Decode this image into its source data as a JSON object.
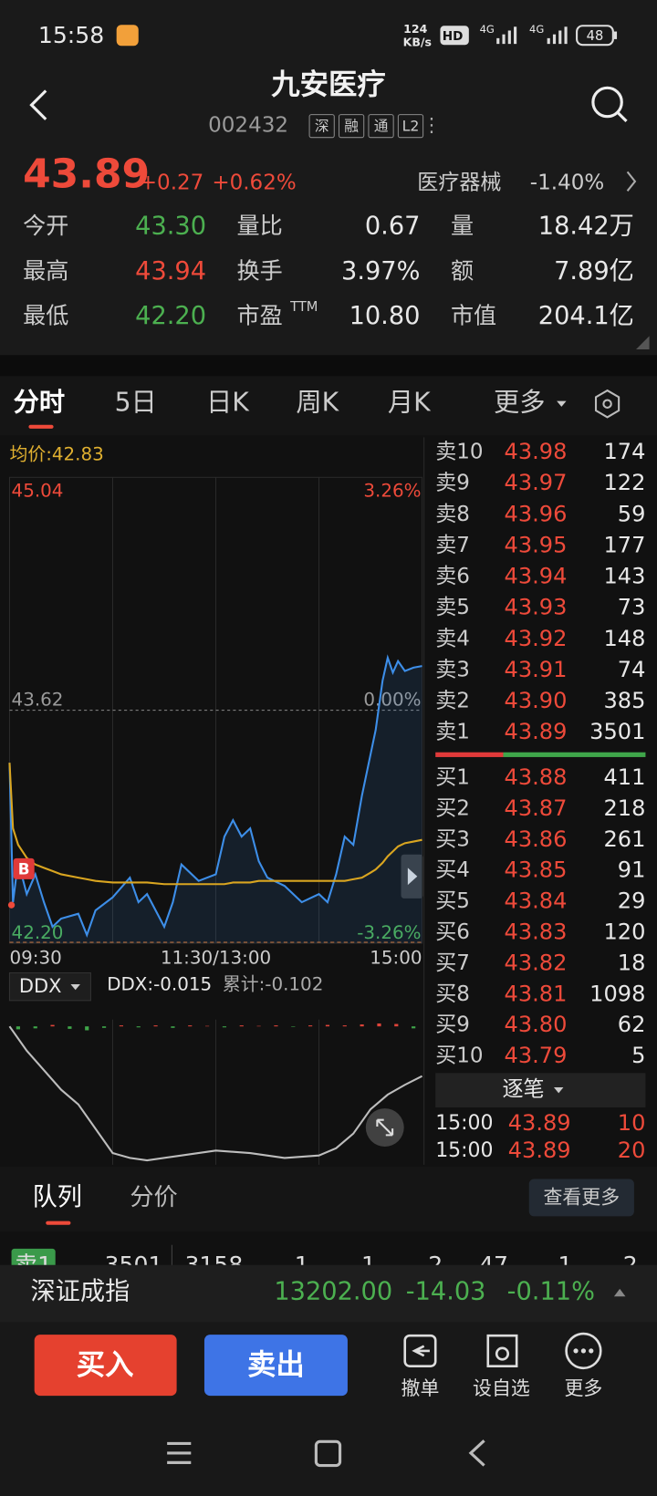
{
  "status_bar": {
    "time": "15:58",
    "net_speed": "124",
    "net_unit": "KB/s",
    "hd": "HD",
    "signal_labels": [
      "4G",
      "4G"
    ],
    "battery": "48"
  },
  "header": {
    "title": "九安医疗",
    "code": "002432",
    "tags": [
      "深",
      "融",
      "通",
      "L2"
    ]
  },
  "quote": {
    "price": "43.89",
    "change": "+0.27",
    "change_pct": "+0.62%",
    "sector": "医疗器械",
    "sector_change": "-1.40%"
  },
  "stats": [
    [
      {
        "label": "今开",
        "value": "43.30",
        "color": "#4cb050"
      },
      {
        "label": "量比",
        "value": "0.67"
      },
      {
        "label": "量",
        "value": "18.42万"
      }
    ],
    [
      {
        "label": "最高",
        "value": "43.94",
        "color": "#ee4a3a"
      },
      {
        "label": "换手",
        "value": "3.97%"
      },
      {
        "label": "额",
        "value": "7.89亿"
      }
    ],
    [
      {
        "label": "最低",
        "value": "42.20",
        "color": "#4cb050"
      },
      {
        "label": "市盈",
        "label_sup": "TTM",
        "value": "10.80"
      },
      {
        "label": "市值",
        "value": "204.1亿"
      }
    ]
  ],
  "period_tabs": [
    "分时",
    "5日",
    "日K",
    "周K",
    "月K",
    "更多"
  ],
  "chart_data": [
    {
      "type": "line",
      "avg_label": "均价:42.83",
      "marker_label": "B",
      "x": [
        0,
        2,
        5,
        10,
        15,
        20,
        25,
        30,
        40,
        45,
        50,
        60,
        70,
        75,
        80,
        90,
        95,
        100,
        110,
        120,
        125,
        130,
        135,
        140,
        145,
        150,
        160,
        170,
        180,
        185,
        190,
        195,
        200,
        205,
        210,
        213,
        217,
        220,
        223,
        226,
        230,
        235,
        240
      ],
      "series": [
        {
          "color": "#3d8ee8",
          "values": [
            43.3,
            42.45,
            42.7,
            42.5,
            42.62,
            42.45,
            42.3,
            42.35,
            42.38,
            42.25,
            42.4,
            42.48,
            42.6,
            42.45,
            42.5,
            42.3,
            42.45,
            42.68,
            42.58,
            42.62,
            42.85,
            42.95,
            42.85,
            42.9,
            42.7,
            42.6,
            42.55,
            42.45,
            42.5,
            42.45,
            42.62,
            42.85,
            42.8,
            43.1,
            43.35,
            43.5,
            43.8,
            43.94,
            43.85,
            43.92,
            43.86,
            43.88,
            43.89
          ]
        },
        {
          "color": "#d9a520",
          "values": [
            43.3,
            42.9,
            42.8,
            42.72,
            42.68,
            42.66,
            42.64,
            42.62,
            42.6,
            42.59,
            42.58,
            42.57,
            42.57,
            42.57,
            42.57,
            42.56,
            42.56,
            42.56,
            42.56,
            42.56,
            42.56,
            42.57,
            42.57,
            42.57,
            42.58,
            42.58,
            42.58,
            42.58,
            42.58,
            42.58,
            42.58,
            42.58,
            42.59,
            42.6,
            42.63,
            42.65,
            42.69,
            42.73,
            42.76,
            42.79,
            42.81,
            42.82,
            42.83
          ]
        }
      ],
      "xlim": [
        0,
        240
      ],
      "xticks": [
        {
          "value": 0,
          "label": "09:30"
        },
        {
          "value": 120,
          "label": "11:30/13:00"
        },
        {
          "value": 240,
          "label": "15:00"
        }
      ],
      "ylim": [
        42.2,
        45.04
      ],
      "yticks": [
        45.04,
        43.62,
        {
          "value": 42.2,
          "label": "42.20"
        }
      ],
      "y2lim": [
        -3.26,
        3.26
      ],
      "y2ticks": [
        {
          "value": 3.26,
          "label": "3.26%"
        },
        {
          "value": 0,
          "label": "0.00%"
        },
        {
          "value": -3.26,
          "label": "-3.26%"
        }
      ]
    },
    {
      "type": "line",
      "indicator": "DDX",
      "label": "DDX:-0.015",
      "cumulative_label": "累计:-0.102",
      "color": "#bdbdbd",
      "x": [
        0,
        10,
        20,
        30,
        40,
        50,
        60,
        70,
        80,
        100,
        120,
        140,
        160,
        180,
        190,
        200,
        210,
        220,
        230,
        240
      ],
      "values": [
        0,
        -0.05,
        -0.09,
        -0.13,
        -0.16,
        -0.21,
        -0.26,
        -0.27,
        -0.275,
        -0.265,
        -0.255,
        -0.26,
        -0.27,
        -0.265,
        -0.25,
        -0.22,
        -0.17,
        -0.14,
        -0.12,
        -0.102
      ],
      "bars": {
        "up_color": "#e0443a",
        "down_color": "#3fa64a",
        "x": [
          5,
          15,
          25,
          35,
          45,
          55,
          65,
          75,
          85,
          95,
          105,
          115,
          125,
          135,
          145,
          155,
          165,
          175,
          185,
          195,
          205,
          215,
          225,
          235
        ],
        "values": [
          -0.006,
          -0.004,
          0.003,
          -0.005,
          -0.008,
          -0.003,
          0.002,
          -0.002,
          0.002,
          -0.003,
          0.002,
          0.001,
          -0.002,
          0.002,
          0.001,
          0.002,
          -0.001,
          0.002,
          0.003,
          0.002,
          0.004,
          0.006,
          0.005,
          -0.004
        ]
      },
      "xlim": [
        0,
        240
      ],
      "ylim": [
        -0.28,
        0.01
      ]
    }
  ],
  "order_book": {
    "asks": [
      {
        "label": "卖10",
        "price": "43.98",
        "volume": "174"
      },
      {
        "label": "卖9",
        "price": "43.97",
        "volume": "122"
      },
      {
        "label": "卖8",
        "price": "43.96",
        "volume": "59"
      },
      {
        "label": "卖7",
        "price": "43.95",
        "volume": "177"
      },
      {
        "label": "卖6",
        "price": "43.94",
        "volume": "143"
      },
      {
        "label": "卖5",
        "price": "43.93",
        "volume": "73"
      },
      {
        "label": "卖4",
        "price": "43.92",
        "volume": "148"
      },
      {
        "label": "卖3",
        "price": "43.91",
        "volume": "74"
      },
      {
        "label": "卖2",
        "price": "43.90",
        "volume": "385"
      },
      {
        "label": "卖1",
        "price": "43.89",
        "volume": "3501"
      }
    ],
    "bids": [
      {
        "label": "买1",
        "price": "43.88",
        "volume": "411"
      },
      {
        "label": "买2",
        "price": "43.87",
        "volume": "218"
      },
      {
        "label": "买3",
        "price": "43.86",
        "volume": "261"
      },
      {
        "label": "买4",
        "price": "43.85",
        "volume": "91"
      },
      {
        "label": "买5",
        "price": "43.84",
        "volume": "29"
      },
      {
        "label": "买6",
        "price": "43.83",
        "volume": "120"
      },
      {
        "label": "买7",
        "price": "43.82",
        "volume": "18"
      },
      {
        "label": "买8",
        "price": "43.81",
        "volume": "1098"
      },
      {
        "label": "买9",
        "price": "43.80",
        "volume": "62"
      },
      {
        "label": "买10",
        "price": "43.79",
        "volume": "5"
      }
    ]
  },
  "trades": {
    "title": "逐笔",
    "rows": [
      {
        "time": "15:00",
        "price": "43.89",
        "volume": "10"
      },
      {
        "time": "15:00",
        "price": "43.89",
        "volume": "20"
      }
    ]
  },
  "detail_tabs": [
    "队列",
    "分价"
  ],
  "more_button": "查看更多",
  "queue_row": [
    "卖1",
    "3501",
    "3158",
    "1",
    "1",
    "2",
    "47",
    "1",
    "2"
  ],
  "index_bar": {
    "name": "深证成指",
    "value": "13202.00",
    "change": "-14.03",
    "change_pct": "-0.11%"
  },
  "actions": {
    "buy": "买入",
    "sell": "卖出",
    "tools": [
      "撤单",
      "设自选",
      "更多"
    ]
  }
}
